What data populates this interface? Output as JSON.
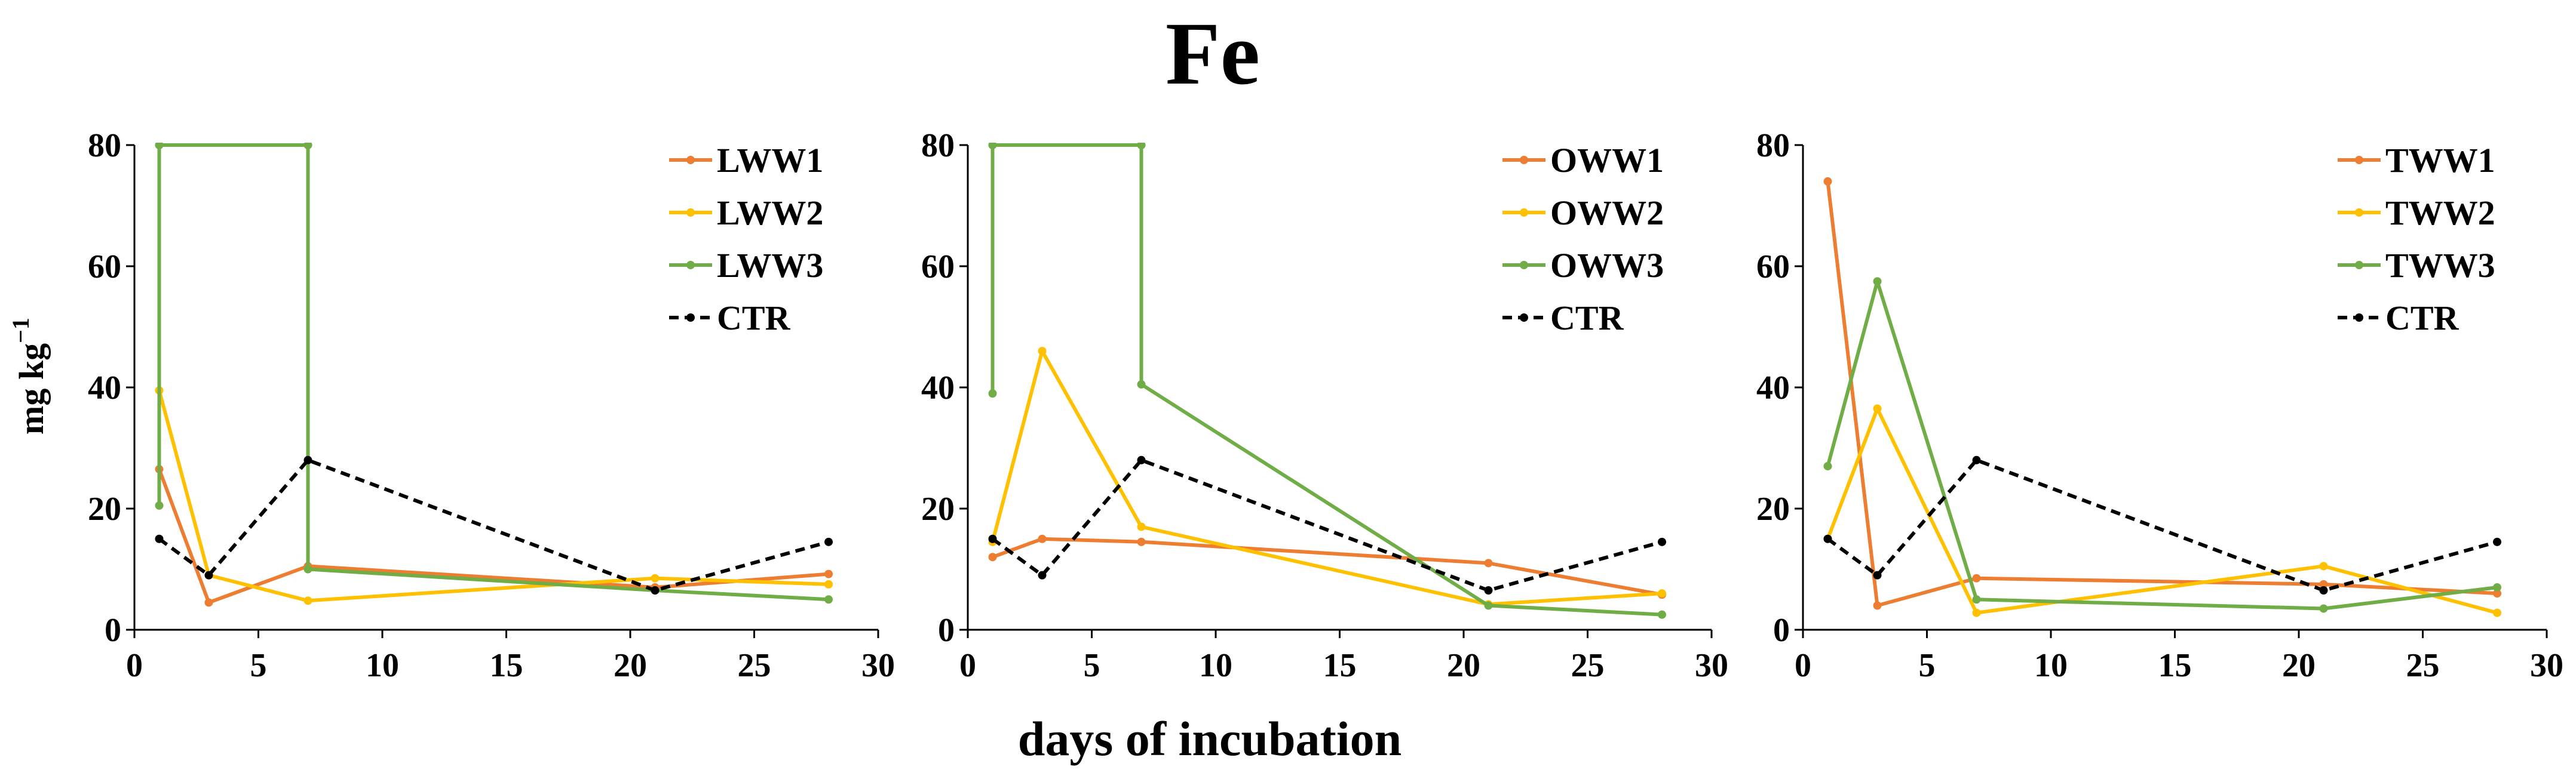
{
  "figure": {
    "title": "Fe",
    "xlabel": "days of incubation",
    "ylabel_main": "mg kg",
    "ylabel_sup": "−1"
  },
  "chart_data": [
    {
      "type": "line",
      "title": "",
      "xlabel": "days of incubation",
      "ylabel": "mg kg−1",
      "xlim": [
        0,
        30
      ],
      "ylim": [
        0,
        80
      ],
      "xticks": [
        0,
        5,
        10,
        15,
        20,
        25,
        30
      ],
      "yticks": [
        0,
        20,
        40,
        60,
        80
      ],
      "grid": false,
      "legend_position": "top-right",
      "series": [
        {
          "name": "LWW1",
          "color": "#ED7D31",
          "dash": false,
          "x": [
            1,
            3,
            7,
            21,
            28
          ],
          "y": [
            26.5,
            4.5,
            10.5,
            7.0,
            9.2
          ]
        },
        {
          "name": "LWW2",
          "color": "#FFC000",
          "dash": false,
          "x": [
            1,
            3,
            7,
            21,
            28
          ],
          "y": [
            39.5,
            9.0,
            4.8,
            8.5,
            7.5
          ]
        },
        {
          "name": "LWW3",
          "color": "#70AD47",
          "dash": false,
          "x": [
            1,
            1,
            1,
            7,
            7,
            7,
            21,
            28
          ],
          "y": [
            20.5,
            80,
            80,
            80,
            80,
            10.0,
            6.5,
            5.0
          ]
        },
        {
          "name": "CTR",
          "color": "#000000",
          "dash": true,
          "x": [
            1,
            3,
            7,
            21,
            28
          ],
          "y": [
            15.0,
            9.0,
            28.0,
            6.5,
            14.5
          ]
        }
      ]
    },
    {
      "type": "line",
      "title": "",
      "xlabel": "days of incubation",
      "ylabel": "",
      "xlim": [
        0,
        30
      ],
      "ylim": [
        0,
        80
      ],
      "xticks": [
        0,
        5,
        10,
        15,
        20,
        25,
        30
      ],
      "yticks": [
        0,
        20,
        40,
        60,
        80
      ],
      "grid": false,
      "legend_position": "top-right",
      "series": [
        {
          "name": "OWW1",
          "color": "#ED7D31",
          "dash": false,
          "x": [
            1,
            3,
            7,
            21,
            28
          ],
          "y": [
            12.0,
            15.0,
            14.5,
            11.0,
            5.8
          ]
        },
        {
          "name": "OWW2",
          "color": "#FFC000",
          "dash": false,
          "x": [
            1,
            3,
            7,
            21,
            28
          ],
          "y": [
            14.5,
            46.0,
            17.0,
            4.2,
            6.0
          ]
        },
        {
          "name": "OWW3",
          "color": "#70AD47",
          "dash": false,
          "x": [
            1,
            1,
            1,
            7,
            7,
            7,
            21,
            28
          ],
          "y": [
            39.0,
            80,
            80,
            80,
            80,
            40.5,
            4.0,
            2.5
          ]
        },
        {
          "name": "CTR",
          "color": "#000000",
          "dash": true,
          "x": [
            1,
            3,
            7,
            21,
            28
          ],
          "y": [
            15.0,
            9.0,
            28.0,
            6.5,
            14.5
          ]
        }
      ]
    },
    {
      "type": "line",
      "title": "",
      "xlabel": "days of incubation",
      "ylabel": "",
      "xlim": [
        0,
        30
      ],
      "ylim": [
        0,
        80
      ],
      "xticks": [
        0,
        5,
        10,
        15,
        20,
        25,
        30
      ],
      "yticks": [
        0,
        20,
        40,
        60,
        80
      ],
      "grid": false,
      "legend_position": "top-right",
      "series": [
        {
          "name": "TWW1",
          "color": "#ED7D31",
          "dash": false,
          "x": [
            1,
            3,
            7,
            21,
            28
          ],
          "y": [
            74.0,
            4.0,
            8.5,
            7.5,
            6.0
          ]
        },
        {
          "name": "TWW2",
          "color": "#FFC000",
          "dash": false,
          "x": [
            1,
            3,
            7,
            21,
            28
          ],
          "y": [
            15.0,
            36.5,
            2.8,
            10.5,
            2.8
          ]
        },
        {
          "name": "TWW3",
          "color": "#70AD47",
          "dash": false,
          "x": [
            1,
            3,
            7,
            21,
            28
          ],
          "y": [
            27.0,
            57.5,
            5.0,
            3.5,
            7.0
          ]
        },
        {
          "name": "CTR",
          "color": "#000000",
          "dash": true,
          "x": [
            1,
            3,
            7,
            21,
            28
          ],
          "y": [
            15.0,
            9.0,
            28.0,
            6.5,
            14.5
          ]
        }
      ]
    }
  ]
}
